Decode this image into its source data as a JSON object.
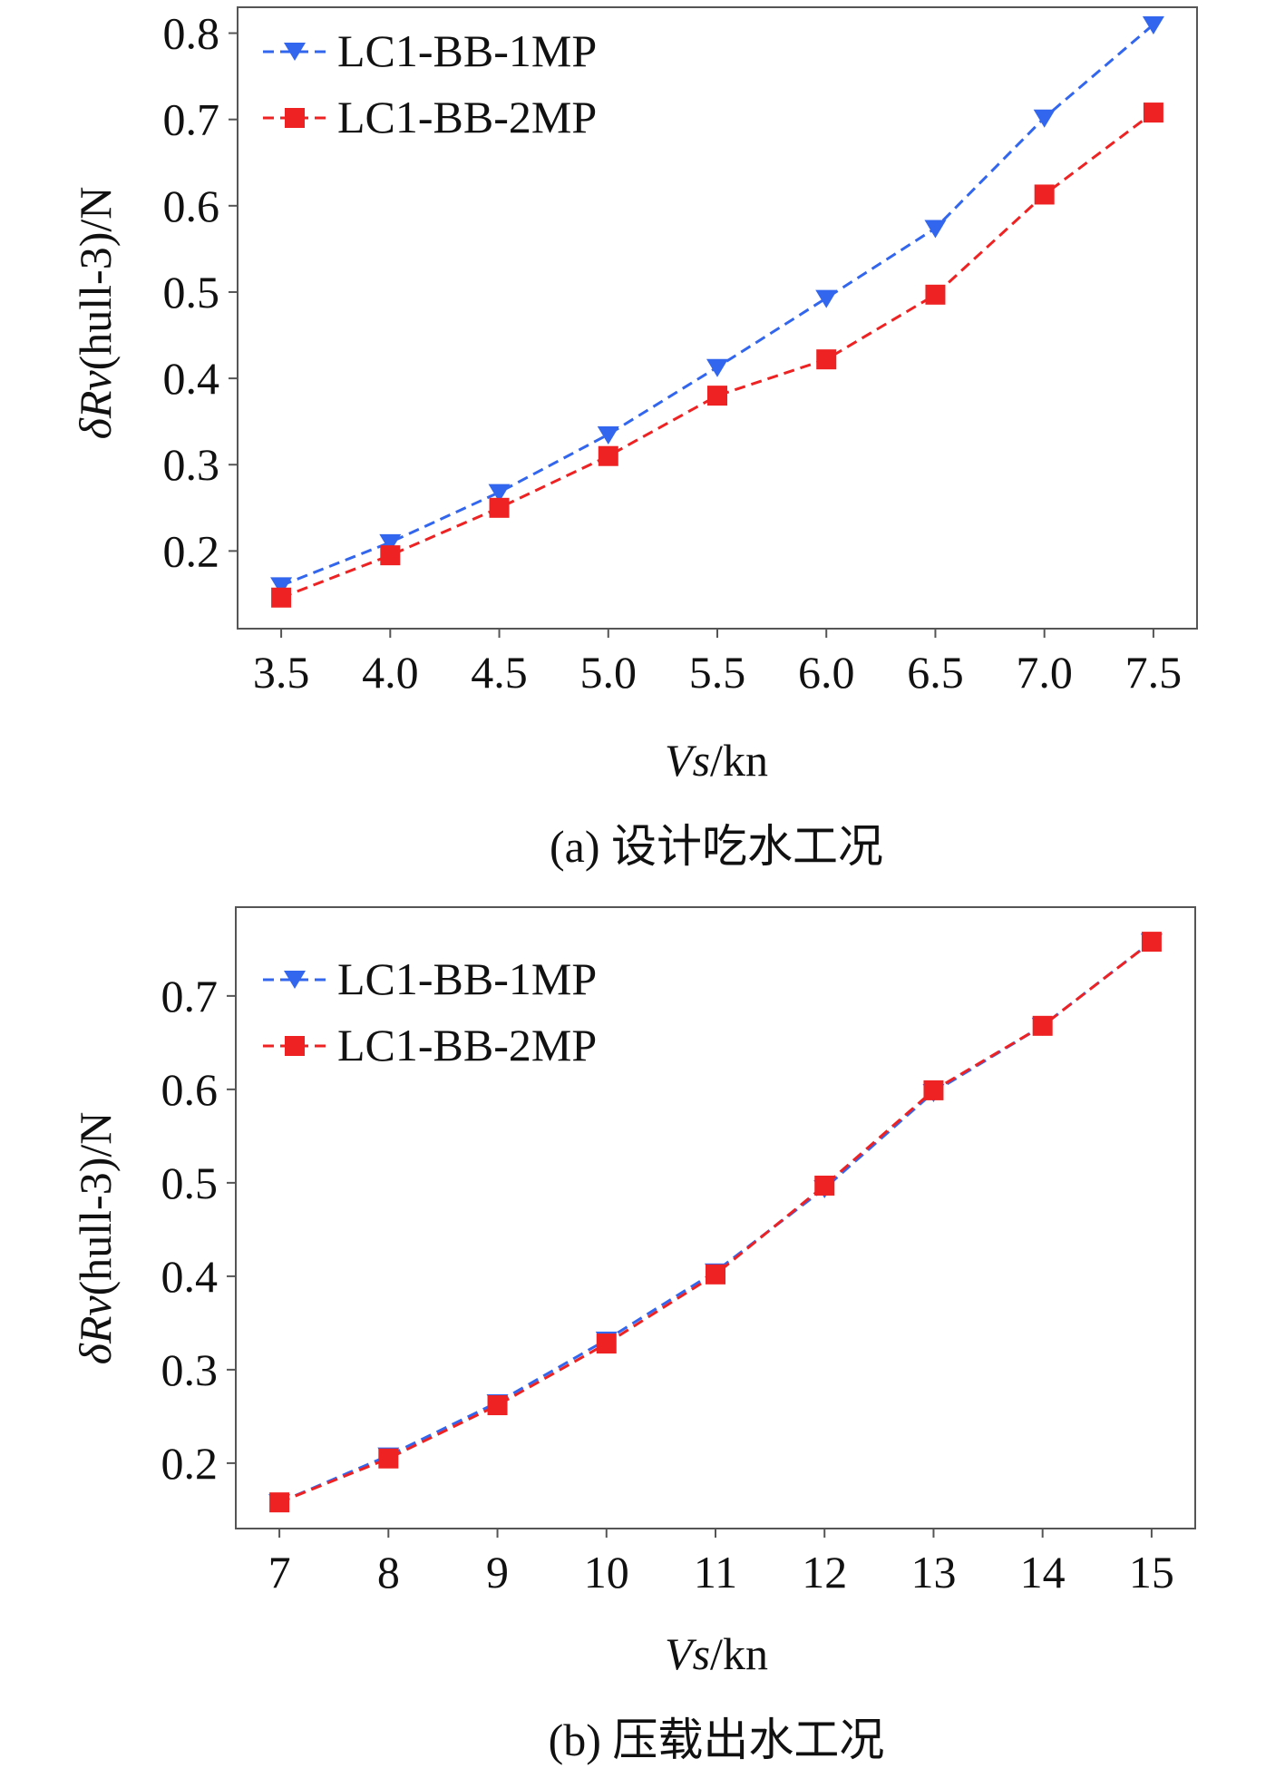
{
  "chart_data": [
    {
      "type": "line",
      "caption": "(a) 设计吃水工况",
      "xlabel_var": "Vs",
      "xlabel_unit": "/kn",
      "ylabel_prefix": "δ",
      "ylabel_var": "Rv",
      "ylabel_unit": "(hull-3)/N",
      "x": [
        3.5,
        4.0,
        4.5,
        5.0,
        5.5,
        6.0,
        6.5,
        7.0,
        7.5
      ],
      "xtick_labels": [
        "3.5",
        "4.0",
        "4.5",
        "5.0",
        "5.5",
        "6.0",
        "6.5",
        "7.0",
        "7.5"
      ],
      "yticks": [
        0.2,
        0.3,
        0.4,
        0.5,
        0.6,
        0.7,
        0.8
      ],
      "ytick_labels": [
        "0.2",
        "0.3",
        "0.4",
        "0.5",
        "0.6",
        "0.7",
        "0.8"
      ],
      "xlim": [
        3.3,
        7.7
      ],
      "ylim": [
        0.11,
        0.83
      ],
      "legend_position": "top-left",
      "series": [
        {
          "name": "LC1-BB-1MP",
          "color": "#3366ee",
          "marker": "triangle-down",
          "values": [
            0.16,
            0.21,
            0.268,
            0.335,
            0.413,
            0.493,
            0.574,
            0.702,
            0.81
          ]
        },
        {
          "name": "LC1-BB-2MP",
          "color": "#ee2222",
          "marker": "square",
          "values": [
            0.146,
            0.195,
            0.25,
            0.31,
            0.38,
            0.422,
            0.497,
            0.613,
            0.708
          ]
        }
      ]
    },
    {
      "type": "line",
      "caption": "(b) 压载出水工况",
      "xlabel_var": "Vs",
      "xlabel_unit": "/kn",
      "ylabel_prefix": "δ",
      "ylabel_var": "Rv",
      "ylabel_unit": "(hull-3)/N",
      "x": [
        7,
        8,
        9,
        10,
        11,
        12,
        13,
        14,
        15
      ],
      "xtick_labels": [
        "7",
        "8",
        "9",
        "10",
        "11",
        "12",
        "13",
        "14",
        "15"
      ],
      "yticks": [
        0.2,
        0.3,
        0.4,
        0.5,
        0.6,
        0.7
      ],
      "ytick_labels": [
        "0.2",
        "0.3",
        "0.4",
        "0.5",
        "0.6",
        "0.7"
      ],
      "xlim": [
        6.6,
        15.4
      ],
      "ylim": [
        0.13,
        0.795
      ],
      "legend_position": "top-left",
      "series": [
        {
          "name": "LC1-BB-1MP",
          "color": "#3366ee",
          "marker": "triangle-down",
          "values": [
            0.158,
            0.208,
            0.265,
            0.332,
            0.405,
            0.494,
            0.597,
            0.668,
            0.758
          ]
        },
        {
          "name": "LC1-BB-2MP",
          "color": "#ee2222",
          "marker": "square",
          "values": [
            0.158,
            0.205,
            0.262,
            0.328,
            0.402,
            0.497,
            0.599,
            0.668,
            0.758
          ]
        }
      ]
    }
  ]
}
